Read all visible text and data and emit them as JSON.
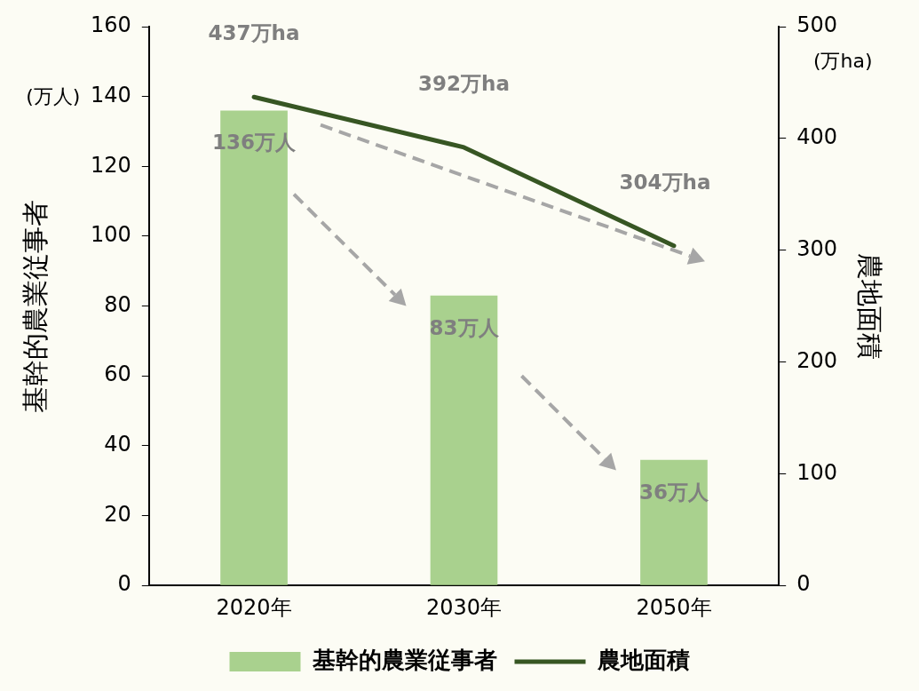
{
  "chart_data": {
    "type": "bar",
    "categories": [
      "2020年",
      "2030年",
      "2050年"
    ],
    "ylabel": "基幹的農業従事者",
    "y2label": "農地面積",
    "annotations": [
      "(万人)",
      "(万ha)"
    ],
    "series": [
      {
        "name": "基幹的農業従事者",
        "color": "#a9d18e",
        "values": [
          136,
          83,
          36
        ],
        "value_labels": [
          "136万人",
          "83万人",
          "36万人"
        ]
      },
      {
        "name": "農地面積",
        "type": "line",
        "axis": "y2",
        "color": "#375623",
        "values": [
          437,
          392,
          304
        ],
        "value_labels": [
          "437万ha",
          "392万ha",
          "304万ha"
        ]
      }
    ],
    "ylim": [
      0,
      160
    ],
    "yticks": [
      0,
      20,
      40,
      60,
      80,
      100,
      120,
      140,
      160
    ],
    "y2lim": [
      0,
      500
    ],
    "y2ticks": [
      0,
      100,
      200,
      300,
      400,
      500
    ],
    "grid": false,
    "legend": "bottom",
    "marker": "none"
  }
}
